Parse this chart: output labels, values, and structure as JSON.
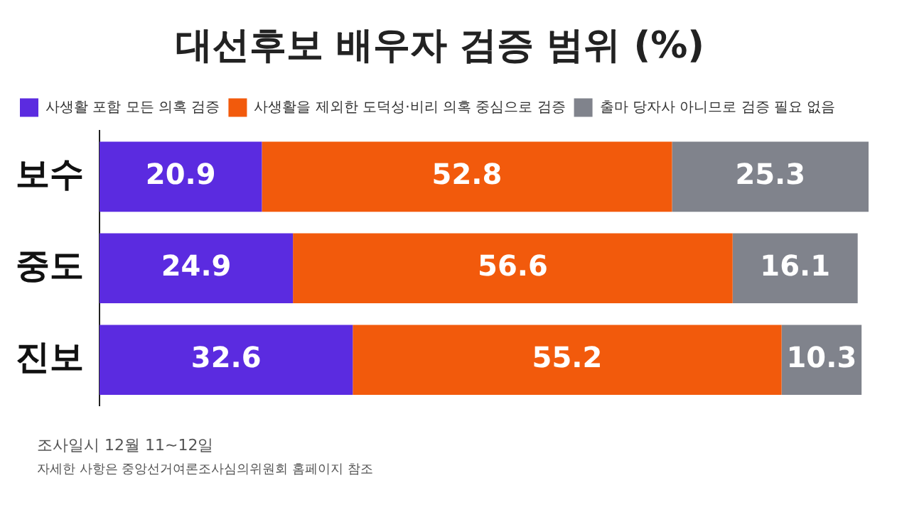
{
  "chart_data": {
    "type": "bar",
    "orientation": "horizontal",
    "stacked": true,
    "title": "대선후보 배우자 검증 범위 (%)",
    "categories": [
      "보수",
      "중도",
      "진보"
    ],
    "series": [
      {
        "name": "사생활 포함 모든 의혹 검증",
        "color": "#5b2be0",
        "values": [
          20.9,
          24.9,
          32.6
        ]
      },
      {
        "name": "사생활을 제외한 도덕성·비리 의혹 중심으로 검증",
        "color": "#f25a0c",
        "values": [
          52.8,
          56.6,
          55.2
        ]
      },
      {
        "name": "출마 당자사 아니므로 검증 필요 없음",
        "color": "#80838c",
        "values": [
          25.3,
          16.1,
          10.3
        ]
      }
    ],
    "data_labels": true,
    "legend": "top left",
    "grid": false,
    "tick_labels": "y",
    "annotations": [
      "조사일시 12월 11~12일",
      "자세한 사항은 중앙선거여론조사심의위원회 홈페이지 참조"
    ]
  }
}
